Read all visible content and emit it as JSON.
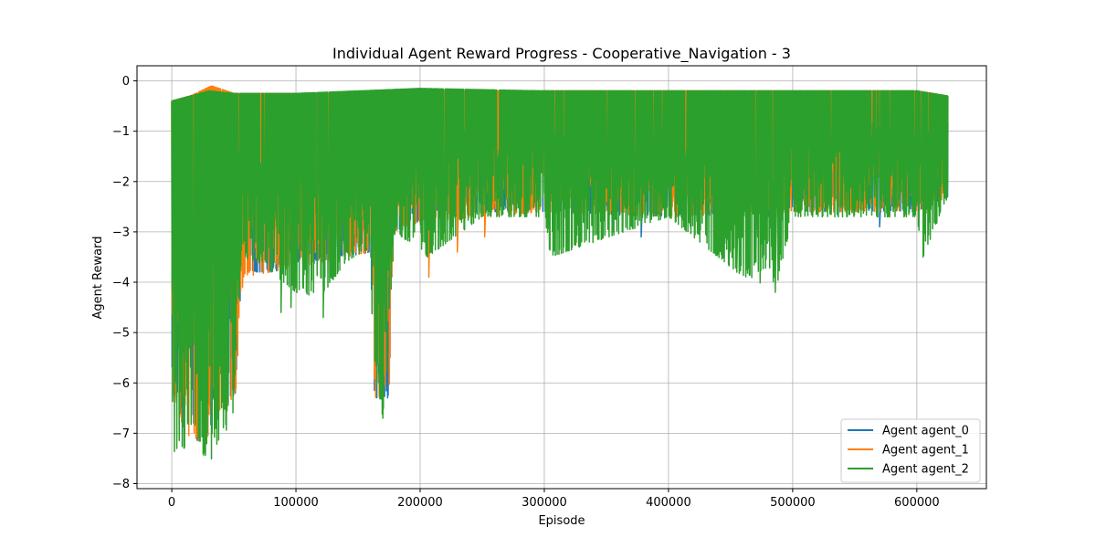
{
  "chart_data": {
    "type": "line",
    "title": "Individual Agent Reward Progress - Cooperative_Navigation - 3",
    "xlabel": "Episode",
    "ylabel": "Agent Reward",
    "xlim": [
      -28000,
      656000
    ],
    "ylim": [
      -8.1,
      0.3
    ],
    "xticks": [
      0,
      100000,
      200000,
      300000,
      400000,
      500000,
      600000
    ],
    "xtick_labels": [
      "0",
      "100000",
      "200000",
      "300000",
      "400000",
      "500000",
      "600000"
    ],
    "yticks": [
      0,
      -1,
      -2,
      -3,
      -4,
      -5,
      -6,
      -7,
      -8
    ],
    "ytick_labels": [
      "0",
      "−1",
      "−2",
      "−3",
      "−4",
      "−5",
      "−6",
      "−7",
      "−8"
    ],
    "grid": true,
    "legend_position": "lower-right",
    "x_max": 625000,
    "series": [
      {
        "name": "Agent agent_0",
        "color": "#1f77b4",
        "upper": [
          [
            0,
            -0.4
          ],
          [
            15000,
            -0.3
          ],
          [
            30000,
            -0.2
          ],
          [
            50000,
            -0.25
          ],
          [
            100000,
            -0.25
          ],
          [
            200000,
            -0.2
          ],
          [
            300000,
            -0.2
          ],
          [
            400000,
            -0.2
          ],
          [
            500000,
            -0.2
          ],
          [
            600000,
            -0.2
          ],
          [
            625000,
            -0.3
          ]
        ],
        "lower": [
          [
            0,
            -6.2
          ],
          [
            10000,
            -7.0
          ],
          [
            25000,
            -7.2
          ],
          [
            52000,
            -6.2
          ],
          [
            56000,
            -3.8
          ],
          [
            80000,
            -3.8
          ],
          [
            120000,
            -3.6
          ],
          [
            160000,
            -3.4
          ],
          [
            163000,
            -6.3
          ],
          [
            175000,
            -6.3
          ],
          [
            178000,
            -3.0
          ],
          [
            200000,
            -2.8
          ],
          [
            250000,
            -2.6
          ],
          [
            300000,
            -2.6
          ],
          [
            400000,
            -2.7
          ],
          [
            500000,
            -2.6
          ],
          [
            600000,
            -2.6
          ],
          [
            625000,
            -2.3
          ]
        ],
        "spikes": [
          [
            378000,
            -3.1
          ],
          [
            570000,
            -2.9
          ],
          [
            480000,
            -2.7
          ]
        ]
      },
      {
        "name": "Agent agent_1",
        "color": "#ff7f0e",
        "upper": [
          [
            0,
            -0.4
          ],
          [
            15000,
            -0.3
          ],
          [
            32000,
            -0.1
          ],
          [
            50000,
            -0.25
          ],
          [
            100000,
            -0.25
          ],
          [
            200000,
            -0.2
          ],
          [
            300000,
            -0.2
          ],
          [
            400000,
            -0.2
          ],
          [
            500000,
            -0.2
          ],
          [
            600000,
            -0.2
          ],
          [
            625000,
            -0.3
          ]
        ],
        "lower": [
          [
            0,
            -6.2
          ],
          [
            10000,
            -7.0
          ],
          [
            25000,
            -7.2
          ],
          [
            52000,
            -6.2
          ],
          [
            56000,
            -3.9
          ],
          [
            80000,
            -3.8
          ],
          [
            120000,
            -3.6
          ],
          [
            160000,
            -3.4
          ],
          [
            163000,
            -6.3
          ],
          [
            175000,
            -6.3
          ],
          [
            178000,
            -3.0
          ],
          [
            200000,
            -2.8
          ],
          [
            250000,
            -2.7
          ],
          [
            300000,
            -2.6
          ],
          [
            400000,
            -2.7
          ],
          [
            500000,
            -2.6
          ],
          [
            600000,
            -2.6
          ],
          [
            625000,
            -2.3
          ]
        ],
        "spikes": [
          [
            57000,
            -4.1
          ],
          [
            207000,
            -3.9
          ],
          [
            230000,
            -3.4
          ],
          [
            252000,
            -3.1
          ],
          [
            425000,
            -2.9
          ]
        ]
      },
      {
        "name": "Agent agent_2",
        "color": "#2ca02c",
        "upper": [
          [
            0,
            -0.4
          ],
          [
            15000,
            -0.3
          ],
          [
            30000,
            -0.2
          ],
          [
            50000,
            -0.25
          ],
          [
            100000,
            -0.25
          ],
          [
            200000,
            -0.15
          ],
          [
            300000,
            -0.2
          ],
          [
            400000,
            -0.2
          ],
          [
            500000,
            -0.2
          ],
          [
            600000,
            -0.2
          ],
          [
            625000,
            -0.3
          ]
        ],
        "lower": [
          [
            0,
            -6.3
          ],
          [
            2000,
            -7.4
          ],
          [
            10000,
            -7.3
          ],
          [
            20000,
            -7.0
          ],
          [
            29000,
            -7.7
          ],
          [
            40000,
            -7.0
          ],
          [
            48000,
            -7.3
          ],
          [
            53000,
            -4.8
          ],
          [
            56000,
            -3.5
          ],
          [
            70000,
            -3.6
          ],
          [
            100000,
            -4.2
          ],
          [
            120000,
            -4.3
          ],
          [
            140000,
            -3.6
          ],
          [
            160000,
            -3.3
          ],
          [
            163000,
            -6.5
          ],
          [
            172000,
            -6.7
          ],
          [
            176000,
            -4.4
          ],
          [
            180000,
            -3.0
          ],
          [
            206000,
            -3.5
          ],
          [
            250000,
            -2.7
          ],
          [
            300000,
            -2.7
          ],
          [
            305000,
            -3.5
          ],
          [
            400000,
            -2.7
          ],
          [
            455000,
            -3.8
          ],
          [
            486000,
            -4.2
          ],
          [
            500000,
            -2.7
          ],
          [
            600000,
            -2.7
          ],
          [
            605000,
            -3.5
          ],
          [
            625000,
            -2.3
          ]
        ],
        "spikes": [
          [
            88000,
            -4.6
          ],
          [
            96000,
            -4.5
          ],
          [
            122000,
            -4.7
          ],
          [
            170000,
            -6.7
          ],
          [
            455000,
            -3.8
          ],
          [
            486000,
            -4.2
          ],
          [
            605000,
            -3.5
          ]
        ]
      }
    ]
  }
}
